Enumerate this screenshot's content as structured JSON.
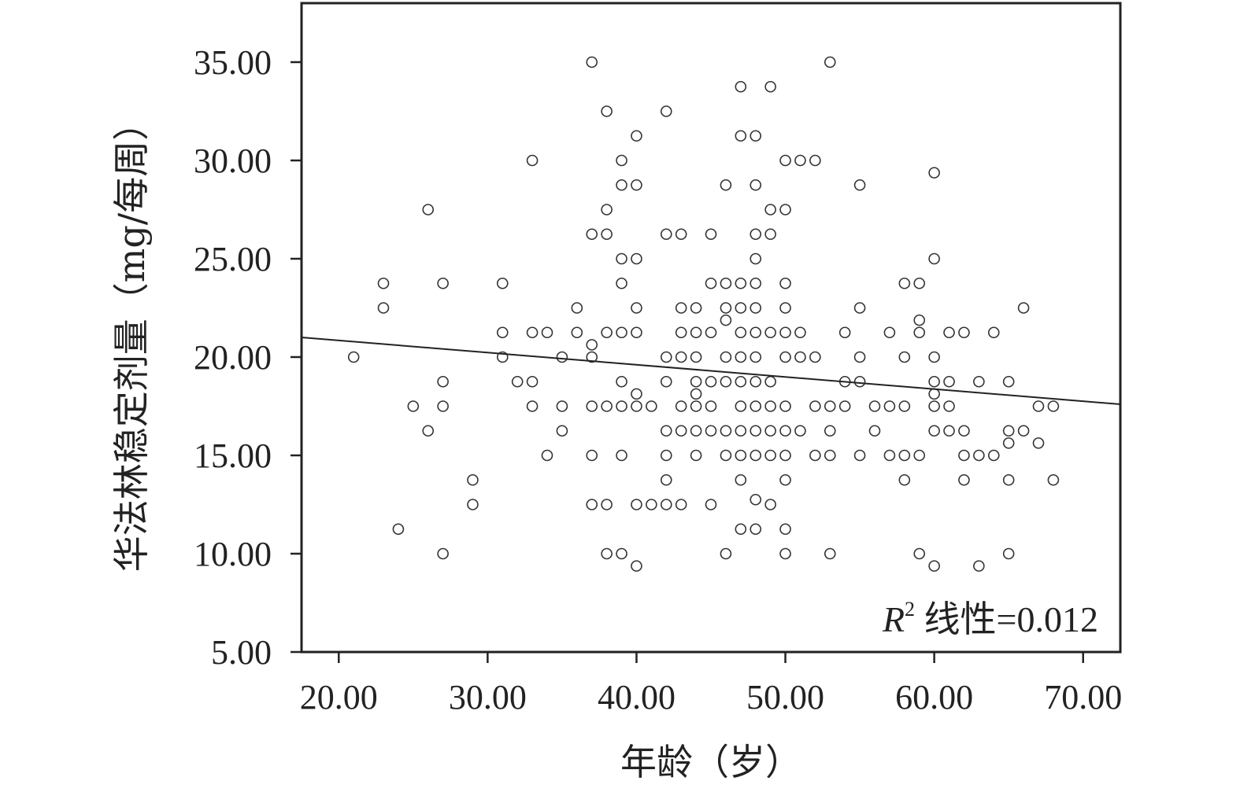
{
  "chart_data": {
    "type": "scatter",
    "xlabel": "年龄（岁）",
    "ylabel": "华法林稳定剂量（mg/每周）",
    "xlim": [
      17.5,
      72.5
    ],
    "ylim": [
      5,
      38
    ],
    "x_ticks": [
      20,
      30,
      40,
      50,
      60,
      70
    ],
    "x_tick_labels": [
      "20.00",
      "30.00",
      "40.00",
      "50.00",
      "60.00",
      "70.00"
    ],
    "y_ticks": [
      5,
      10,
      15,
      20,
      25,
      30,
      35
    ],
    "y_tick_labels": [
      "5.00",
      "10.00",
      "15.00",
      "20.00",
      "25.00",
      "30.00",
      "35.00"
    ],
    "annotation": {
      "r2_symbol": "R",
      "r2_sup": "2",
      "text": " 线性=0.012"
    },
    "fit_line": {
      "x": [
        17.5,
        72.5
      ],
      "y": [
        21.0,
        17.6
      ]
    },
    "grid": false,
    "legend": "none",
    "points": [
      [
        21,
        20
      ],
      [
        23,
        23.75
      ],
      [
        23,
        22.5
      ],
      [
        24,
        11.25
      ],
      [
        25,
        17.5
      ],
      [
        26,
        27.5
      ],
      [
        26,
        16.25
      ],
      [
        27,
        23.75
      ],
      [
        27,
        18.75
      ],
      [
        27,
        17.5
      ],
      [
        27,
        10
      ],
      [
        29,
        13.75
      ],
      [
        29,
        12.5
      ],
      [
        31,
        23.75
      ],
      [
        31,
        21.25
      ],
      [
        31,
        20
      ],
      [
        32,
        18.75
      ],
      [
        33,
        30
      ],
      [
        33,
        21.25
      ],
      [
        33,
        18.75
      ],
      [
        33,
        17.5
      ],
      [
        34,
        21.25
      ],
      [
        34,
        15
      ],
      [
        35,
        20
      ],
      [
        35,
        17.5
      ],
      [
        35,
        16.25
      ],
      [
        36,
        22.5
      ],
      [
        36,
        21.25
      ],
      [
        37,
        35
      ],
      [
        37,
        26.25
      ],
      [
        37,
        20.625
      ],
      [
        37,
        20
      ],
      [
        37,
        17.5
      ],
      [
        37,
        15
      ],
      [
        37,
        12.5
      ],
      [
        38,
        32.5
      ],
      [
        38,
        27.5
      ],
      [
        38,
        26.25
      ],
      [
        38,
        21.25
      ],
      [
        38,
        17.5
      ],
      [
        38,
        12.5
      ],
      [
        38,
        10
      ],
      [
        39,
        30
      ],
      [
        39,
        28.75
      ],
      [
        39,
        25
      ],
      [
        39,
        23.75
      ],
      [
        39,
        21.25
      ],
      [
        39,
        18.75
      ],
      [
        39,
        17.5
      ],
      [
        39,
        15
      ],
      [
        39,
        10
      ],
      [
        40,
        31.25
      ],
      [
        40,
        28.75
      ],
      [
        40,
        25
      ],
      [
        40,
        22.5
      ],
      [
        40,
        21.25
      ],
      [
        40,
        18.125
      ],
      [
        40,
        17.5
      ],
      [
        40,
        12.5
      ],
      [
        40,
        9.375
      ],
      [
        41,
        17.5
      ],
      [
        41,
        12.5
      ],
      [
        42,
        32.5
      ],
      [
        42,
        26.25
      ],
      [
        42,
        20
      ],
      [
        42,
        18.75
      ],
      [
        42,
        16.25
      ],
      [
        42,
        15
      ],
      [
        42,
        13.75
      ],
      [
        42,
        12.5
      ],
      [
        43,
        26.25
      ],
      [
        43,
        22.5
      ],
      [
        43,
        21.25
      ],
      [
        43,
        20
      ],
      [
        43,
        17.5
      ],
      [
        43,
        16.25
      ],
      [
        43,
        12.5
      ],
      [
        44,
        22.5
      ],
      [
        44,
        21.25
      ],
      [
        44,
        20
      ],
      [
        44,
        18.75
      ],
      [
        44,
        18.125
      ],
      [
        44,
        17.5
      ],
      [
        44,
        16.25
      ],
      [
        44,
        15
      ],
      [
        45,
        26.25
      ],
      [
        45,
        23.75
      ],
      [
        45,
        21.25
      ],
      [
        45,
        18.75
      ],
      [
        45,
        17.5
      ],
      [
        45,
        16.25
      ],
      [
        45,
        12.5
      ],
      [
        46,
        28.75
      ],
      [
        46,
        23.75
      ],
      [
        46,
        22.5
      ],
      [
        46,
        21.875
      ],
      [
        46,
        20
      ],
      [
        46,
        18.75
      ],
      [
        46,
        16.25
      ],
      [
        46,
        15
      ],
      [
        46,
        10
      ],
      [
        47,
        33.75
      ],
      [
        47,
        31.25
      ],
      [
        47,
        23.75
      ],
      [
        47,
        22.5
      ],
      [
        47,
        21.25
      ],
      [
        47,
        20
      ],
      [
        47,
        18.75
      ],
      [
        47,
        17.5
      ],
      [
        47,
        16.25
      ],
      [
        47,
        15
      ],
      [
        47,
        13.75
      ],
      [
        47,
        11.25
      ],
      [
        48,
        31.25
      ],
      [
        48,
        28.75
      ],
      [
        48,
        26.25
      ],
      [
        48,
        25
      ],
      [
        48,
        23.75
      ],
      [
        48,
        22.5
      ],
      [
        48,
        21.25
      ],
      [
        48,
        20
      ],
      [
        48,
        18.75
      ],
      [
        48,
        17.5
      ],
      [
        48,
        16.25
      ],
      [
        48,
        15
      ],
      [
        48,
        12.75
      ],
      [
        48,
        11.25
      ],
      [
        49,
        33.75
      ],
      [
        49,
        27.5
      ],
      [
        49,
        26.25
      ],
      [
        49,
        21.25
      ],
      [
        49,
        18.75
      ],
      [
        49,
        17.5
      ],
      [
        49,
        16.25
      ],
      [
        49,
        15
      ],
      [
        49,
        12.5
      ],
      [
        50,
        30
      ],
      [
        50,
        27.5
      ],
      [
        50,
        23.75
      ],
      [
        50,
        22.5
      ],
      [
        50,
        21.25
      ],
      [
        50,
        20
      ],
      [
        50,
        17.5
      ],
      [
        50,
        16.25
      ],
      [
        50,
        15
      ],
      [
        50,
        13.75
      ],
      [
        50,
        11.25
      ],
      [
        50,
        10
      ],
      [
        51,
        30
      ],
      [
        51,
        21.25
      ],
      [
        51,
        20
      ],
      [
        51,
        16.25
      ],
      [
        52,
        30
      ],
      [
        52,
        20
      ],
      [
        52,
        17.5
      ],
      [
        52,
        15
      ],
      [
        53,
        35
      ],
      [
        53,
        17.5
      ],
      [
        53,
        16.25
      ],
      [
        53,
        15
      ],
      [
        53,
        10
      ],
      [
        54,
        21.25
      ],
      [
        54,
        18.75
      ],
      [
        54,
        17.5
      ],
      [
        55,
        28.75
      ],
      [
        55,
        22.5
      ],
      [
        55,
        20
      ],
      [
        55,
        18.75
      ],
      [
        55,
        15
      ],
      [
        56,
        17.5
      ],
      [
        56,
        16.25
      ],
      [
        57,
        21.25
      ],
      [
        57,
        17.5
      ],
      [
        57,
        15
      ],
      [
        58,
        23.75
      ],
      [
        58,
        20
      ],
      [
        58,
        17.5
      ],
      [
        58,
        15
      ],
      [
        58,
        13.75
      ],
      [
        59,
        23.75
      ],
      [
        59,
        21.875
      ],
      [
        59,
        21.25
      ],
      [
        59,
        15
      ],
      [
        59,
        10
      ],
      [
        60,
        29.375
      ],
      [
        60,
        25
      ],
      [
        60,
        20
      ],
      [
        60,
        18.75
      ],
      [
        60,
        18.125
      ],
      [
        60,
        17.5
      ],
      [
        60,
        16.25
      ],
      [
        60,
        9.375
      ],
      [
        61,
        21.25
      ],
      [
        61,
        18.75
      ],
      [
        61,
        17.5
      ],
      [
        61,
        16.25
      ],
      [
        62,
        21.25
      ],
      [
        62,
        16.25
      ],
      [
        62,
        15
      ],
      [
        62,
        13.75
      ],
      [
        63,
        18.75
      ],
      [
        63,
        15
      ],
      [
        63,
        9.375
      ],
      [
        64,
        21.25
      ],
      [
        64,
        15
      ],
      [
        65,
        18.75
      ],
      [
        65,
        16.25
      ],
      [
        65,
        15.625
      ],
      [
        65,
        13.75
      ],
      [
        65,
        10
      ],
      [
        66,
        22.5
      ],
      [
        66,
        16.25
      ],
      [
        67,
        17.5
      ],
      [
        67,
        15.625
      ],
      [
        68,
        17.5
      ],
      [
        68,
        13.75
      ]
    ]
  }
}
